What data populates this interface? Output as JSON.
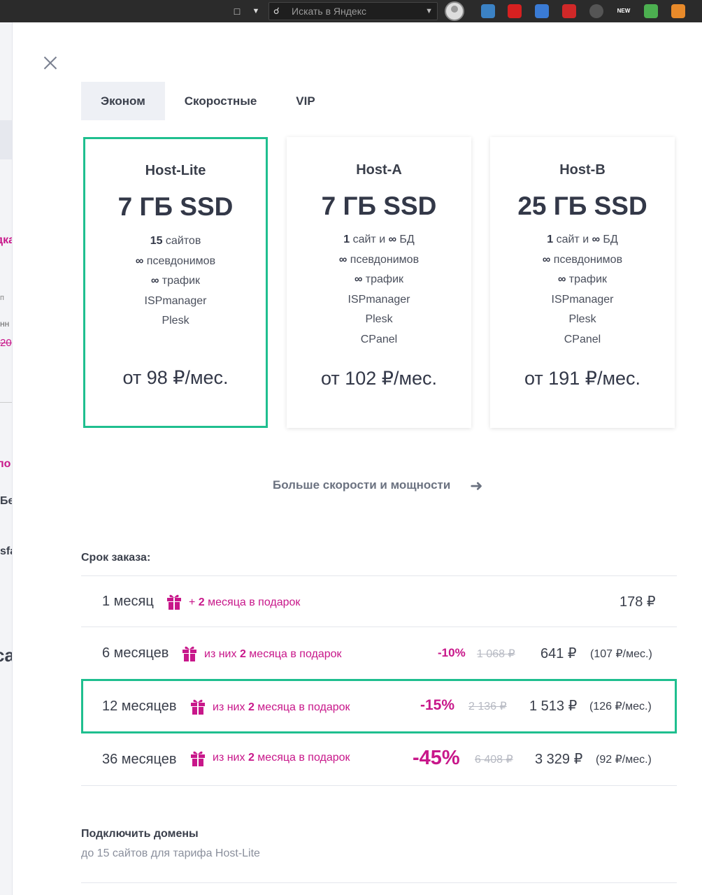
{
  "browser": {
    "search_placeholder": "Искать в Яндекс",
    "extensions": [
      {
        "name": "ext-maps-icon",
        "color": "#3b82c4"
      },
      {
        "name": "ext-adblock-icon",
        "color": "#d62020"
      },
      {
        "name": "ext-translate-icon",
        "color": "#3a7bd5"
      },
      {
        "name": "ext-password-icon",
        "color": "#d02828"
      },
      {
        "name": "ext-gray-icon",
        "color": "#555555"
      },
      {
        "name": "ext-new-icon",
        "color": "#2b2b2b"
      },
      {
        "name": "ext-download-icon",
        "color": "#4caf50"
      },
      {
        "name": "ext-fox-icon",
        "color": "#e88a2a"
      }
    ],
    "new_badge": "NEW"
  },
  "background": {
    "fragments": [
      "дка",
      "п",
      "нн",
      "20",
      "по",
      "Бе",
      "sfa",
      "ca"
    ]
  },
  "tabs": [
    {
      "label": "Эконом",
      "active": true
    },
    {
      "label": "Скоростные",
      "active": false
    },
    {
      "label": "VIP",
      "active": false
    }
  ],
  "plans": [
    {
      "name": "Host-Lite",
      "disk": "7 ГБ SSD",
      "features": [
        {
          "strong": "15",
          "text": " сайтов"
        },
        {
          "strong": "∞",
          "text": " псевдонимов"
        },
        {
          "strong": "∞",
          "text": " трафик"
        },
        {
          "strong": "",
          "text": "ISPmanager"
        },
        {
          "strong": "",
          "text": "Plesk"
        }
      ],
      "price": "от 98 ₽/мес.",
      "selected": true
    },
    {
      "name": "Host-A",
      "disk": "7 ГБ SSD",
      "features": [
        {
          "strong": "1",
          "text": " сайт и ",
          "strong2": "∞",
          "text2": " БД"
        },
        {
          "strong": "∞",
          "text": " псевдонимов"
        },
        {
          "strong": "∞",
          "text": " трафик"
        },
        {
          "strong": "",
          "text": "ISPmanager"
        },
        {
          "strong": "",
          "text": "Plesk"
        },
        {
          "strong": "",
          "text": "CPanel"
        }
      ],
      "price": "от 102 ₽/мес.",
      "selected": false
    },
    {
      "name": "Host-B",
      "disk": "25 ГБ SSD",
      "features": [
        {
          "strong": "1",
          "text": " сайт и ",
          "strong2": "∞",
          "text2": " БД"
        },
        {
          "strong": "∞",
          "text": " псевдонимов"
        },
        {
          "strong": "∞",
          "text": " трафик"
        },
        {
          "strong": "",
          "text": "ISPmanager"
        },
        {
          "strong": "",
          "text": "Plesk"
        },
        {
          "strong": "",
          "text": "CPanel"
        }
      ],
      "price": "от 191 ₽/мес.",
      "selected": false
    }
  ],
  "more_link": "Больше скорости и мощности",
  "order": {
    "label": "Срок заказа:",
    "rows": [
      {
        "term": "1 месяц",
        "gift_prefix": "+ ",
        "gift_count": "2",
        "gift_suffix": " месяца в подарок",
        "discount": "",
        "old_price": "",
        "price": "178 ₽",
        "per_month": ""
      },
      {
        "term": "6 месяцев",
        "gift_prefix": "из них ",
        "gift_count": "2",
        "gift_suffix": " месяца в подарок",
        "discount": "-10%",
        "old_price": "1 068 ₽",
        "price": "641 ₽",
        "per_month": "(107 ₽/мес.)"
      },
      {
        "term": "12 месяцев",
        "gift_prefix": "из них ",
        "gift_count": "2",
        "gift_suffix": " месяца в подарок",
        "discount": "-15%",
        "old_price": "2 136 ₽",
        "price": "1 513 ₽",
        "per_month": "(126 ₽/мес.)",
        "selected": true
      },
      {
        "term": "36 месяцев",
        "gift_prefix": "из них ",
        "gift_count": "2",
        "gift_suffix": " месяца в подарок",
        "discount": "-45%",
        "old_price": "6 408 ₽",
        "price": "3 329 ₽",
        "per_month": "(92 ₽/мес.)"
      }
    ]
  },
  "domains": {
    "title": "Подключить домены",
    "subtitle": "до 15 сайтов для тарифа Host-Lite"
  },
  "colors": {
    "accent_green": "#1fbf8f",
    "accent_magenta": "#c8178a",
    "text_dark": "#3a3f4b"
  }
}
